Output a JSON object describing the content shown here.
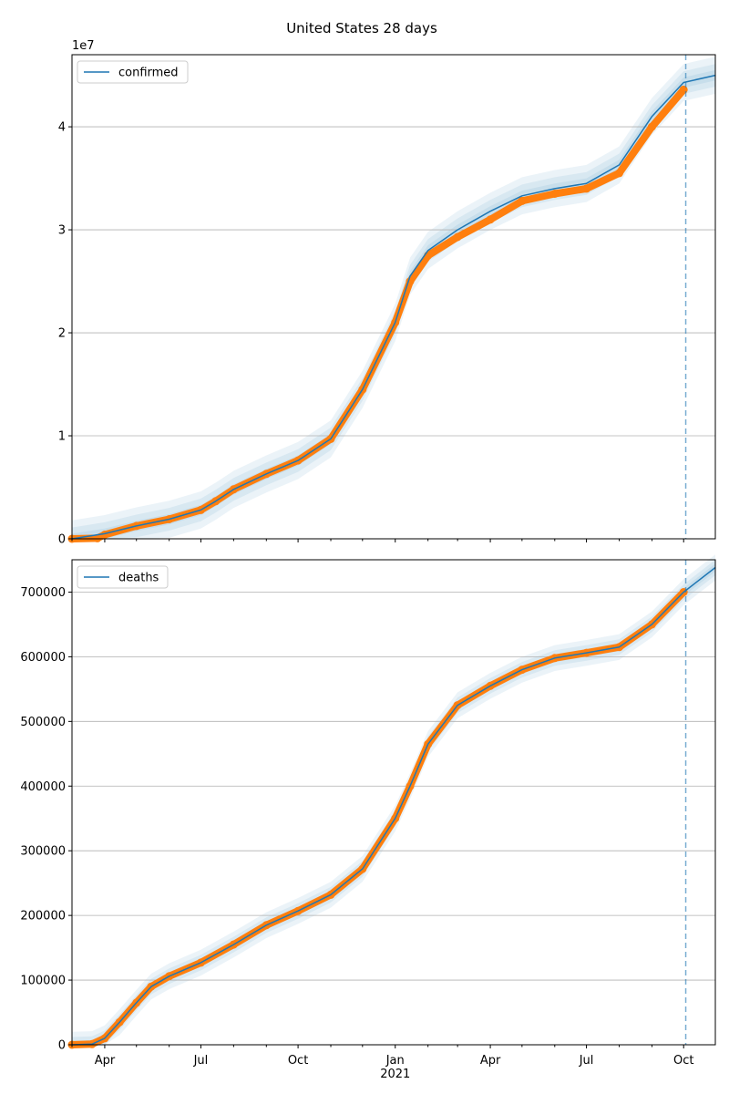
{
  "figure": {
    "title": "United States 28 days"
  },
  "chart_data": [
    {
      "type": "line",
      "name": "confirmed-panel",
      "legend": "confirmed",
      "legend_placement": "top-left",
      "grid": "y",
      "x_range": [
        "2020-03-01",
        "2021-10-31"
      ],
      "ylim": [
        0,
        47000000
      ],
      "y_ticks": [
        0,
        10000000,
        20000000,
        30000000,
        40000000
      ],
      "y_tick_labels": [
        "0",
        "1",
        "2",
        "3",
        "4"
      ],
      "y_offset_label": "1e7",
      "forecast_start": "2021-10-03",
      "colors": {
        "model": "#1f77b4",
        "observed": "#ff7f0e",
        "band": "#1f77b4"
      },
      "model_line": [
        [
          "2020-03-01",
          0
        ],
        [
          "2020-04-01",
          500000
        ],
        [
          "2020-05-01",
          1250000
        ],
        [
          "2020-06-01",
          1900000
        ],
        [
          "2020-07-01",
          2800000
        ],
        [
          "2020-07-15",
          3650000
        ],
        [
          "2020-08-01",
          4800000
        ],
        [
          "2020-09-01",
          6300000
        ],
        [
          "2020-10-01",
          7600000
        ],
        [
          "2020-11-01",
          9700000
        ],
        [
          "2020-12-01",
          14500000
        ],
        [
          "2021-01-01",
          21000000
        ],
        [
          "2021-01-15",
          25500000
        ],
        [
          "2021-02-01",
          28000000
        ],
        [
          "2021-03-01",
          30000000
        ],
        [
          "2021-04-01",
          31800000
        ],
        [
          "2021-05-01",
          33300000
        ],
        [
          "2021-06-01",
          34000000
        ],
        [
          "2021-07-01",
          34500000
        ],
        [
          "2021-08-01",
          36300000
        ],
        [
          "2021-09-01",
          41000000
        ],
        [
          "2021-10-01",
          44300000
        ],
        [
          "2021-10-31",
          45000000
        ]
      ],
      "observed": [
        [
          "2020-03-01",
          0
        ],
        [
          "2020-03-25",
          50000
        ],
        [
          "2020-04-01",
          400000
        ],
        [
          "2020-05-01",
          1250000
        ],
        [
          "2020-06-01",
          1900000
        ],
        [
          "2020-07-01",
          2800000
        ],
        [
          "2020-07-15",
          3650000
        ],
        [
          "2020-08-01",
          4800000
        ],
        [
          "2020-09-01",
          6300000
        ],
        [
          "2020-10-01",
          7600000
        ],
        [
          "2020-11-01",
          9700000
        ],
        [
          "2020-12-01",
          14500000
        ],
        [
          "2021-01-01",
          21000000
        ],
        [
          "2021-01-15",
          25000000
        ],
        [
          "2021-02-01",
          27500000
        ],
        [
          "2021-03-01",
          29300000
        ],
        [
          "2021-04-01",
          31000000
        ],
        [
          "2021-05-01",
          32800000
        ],
        [
          "2021-06-01",
          33500000
        ],
        [
          "2021-07-01",
          34000000
        ],
        [
          "2021-08-01",
          35500000
        ],
        [
          "2021-09-01",
          40000000
        ],
        [
          "2021-10-01",
          43600000
        ]
      ],
      "bands": [
        500000,
        1100000,
        1800000
      ]
    },
    {
      "type": "line",
      "name": "deaths-panel",
      "legend": "deaths",
      "legend_placement": "top-left",
      "grid": "y",
      "x_range": [
        "2020-03-01",
        "2021-10-31"
      ],
      "ylim": [
        0,
        750000
      ],
      "y_ticks": [
        0,
        100000,
        200000,
        300000,
        400000,
        500000,
        600000,
        700000
      ],
      "y_tick_labels": [
        "0",
        "100000",
        "200000",
        "300000",
        "400000",
        "500000",
        "600000",
        "700000"
      ],
      "x_ticks": [
        "2020-04-01",
        "2020-07-01",
        "2020-10-01",
        "2021-01-01",
        "2021-04-01",
        "2021-07-01",
        "2021-10-01"
      ],
      "x_tick_labels": [
        "Apr",
        "Jul",
        "Oct",
        "Jan",
        "Apr",
        "Jul",
        "Oct"
      ],
      "x_year_label": "2021",
      "forecast_start": "2021-10-03",
      "colors": {
        "model": "#1f77b4",
        "observed": "#ff7f0e",
        "band": "#1f77b4"
      },
      "model_line": [
        [
          "2020-03-01",
          0
        ],
        [
          "2020-03-20",
          1000
        ],
        [
          "2020-04-01",
          10000
        ],
        [
          "2020-04-15",
          35000
        ],
        [
          "2020-05-01",
          65000
        ],
        [
          "2020-05-15",
          90000
        ],
        [
          "2020-06-01",
          106000
        ],
        [
          "2020-07-01",
          127000
        ],
        [
          "2020-08-01",
          155000
        ],
        [
          "2020-09-01",
          185000
        ],
        [
          "2020-10-01",
          207000
        ],
        [
          "2020-11-01",
          232000
        ],
        [
          "2020-12-01",
          272000
        ],
        [
          "2021-01-01",
          350000
        ],
        [
          "2021-01-15",
          400000
        ],
        [
          "2021-02-01",
          465000
        ],
        [
          "2021-03-01",
          525000
        ],
        [
          "2021-04-01",
          555000
        ],
        [
          "2021-05-01",
          580000
        ],
        [
          "2021-06-01",
          598000
        ],
        [
          "2021-07-01",
          606000
        ],
        [
          "2021-08-01",
          615000
        ],
        [
          "2021-09-01",
          650000
        ],
        [
          "2021-10-01",
          700000
        ],
        [
          "2021-10-31",
          738000
        ]
      ],
      "observed": [
        [
          "2020-03-01",
          0
        ],
        [
          "2020-03-20",
          1000
        ],
        [
          "2020-04-01",
          10000
        ],
        [
          "2020-04-15",
          35000
        ],
        [
          "2020-05-01",
          65000
        ],
        [
          "2020-05-15",
          90000
        ],
        [
          "2020-06-01",
          106000
        ],
        [
          "2020-07-01",
          127000
        ],
        [
          "2020-08-01",
          155000
        ],
        [
          "2020-09-01",
          185000
        ],
        [
          "2020-10-01",
          207000
        ],
        [
          "2020-11-01",
          232000
        ],
        [
          "2020-12-01",
          272000
        ],
        [
          "2021-01-01",
          350000
        ],
        [
          "2021-01-15",
          400000
        ],
        [
          "2021-02-01",
          465000
        ],
        [
          "2021-03-01",
          525000
        ],
        [
          "2021-04-01",
          555000
        ],
        [
          "2021-05-01",
          580000
        ],
        [
          "2021-06-01",
          598000
        ],
        [
          "2021-07-01",
          606000
        ],
        [
          "2021-08-01",
          615000
        ],
        [
          "2021-09-01",
          650000
        ],
        [
          "2021-10-01",
          700000
        ]
      ],
      "bands": [
        6000,
        12000,
        20000
      ]
    }
  ]
}
